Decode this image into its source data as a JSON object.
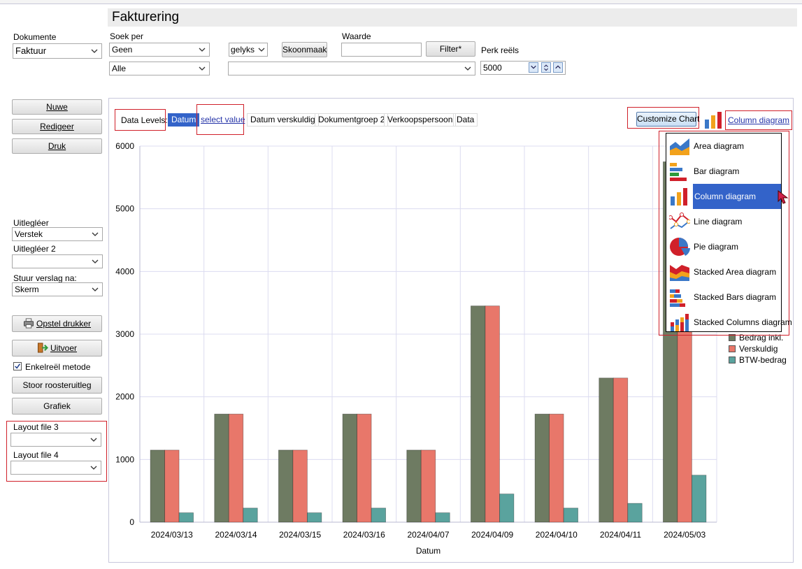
{
  "window": {
    "title": "Fakturering"
  },
  "filters": {
    "dokumente_label": "Dokumente",
    "dokumente_value": "Faktuur",
    "soek_per_label": "Soek per",
    "soek_per_value": "Geen",
    "soek_per_value2": "Alle",
    "operator_value": "gelyks",
    "skoonmaak_label": "Skoonmaak",
    "waarde_label": "Waarde",
    "waarde_value": "",
    "filter_label": "Filter*",
    "second_value": "",
    "perk_label": "Perk reëls",
    "perk_value": "5000"
  },
  "side": {
    "nuwe": "Nuwe",
    "redigeer": "Redigeer",
    "druk": "Druk",
    "uitleg_label": "Uitlegléer",
    "uitleg_value": "Verstek",
    "uitleg2_label": "Uitlegléer 2",
    "uitleg2_value": "",
    "stuur_label": "Stuur verslag na:",
    "stuur_value": "Skerm",
    "opstel": "Opstel drukker",
    "uitvoer": "Uitvoer",
    "enkel": "Enkelreël metode",
    "stoor": "Stoor roosteruitleg",
    "grafiek": "Grafiek",
    "layout3_label": "Layout file 3",
    "layout3_value": "",
    "layout4_label": "Layout file 4",
    "layout4_value": ""
  },
  "levels": {
    "label": "Data Levels:",
    "items": [
      "Datum",
      "select value",
      "Datum verskuldig",
      "Dokumentgroep 2",
      "Verkoopspersoon",
      "Data"
    ]
  },
  "chart_controls": {
    "customize": "Customize Chart",
    "current": "Column diagram"
  },
  "menu": {
    "items": [
      "Area diagram",
      "Bar diagram",
      "Column diagram",
      "Line diagram",
      "Pie diagram",
      "Stacked Area diagram",
      "Stacked Bars diagram",
      "Stacked Columns diagram"
    ],
    "selected": "Column diagram"
  },
  "colors": {
    "bedrag": "#6e7b62",
    "verskuldig": "#e8776a",
    "btw": "#5aa39e",
    "selection": "#3363c9",
    "highlight": "#d0202a"
  },
  "chart_data": {
    "type": "bar",
    "xlabel": "Datum",
    "ylabel": "",
    "ylim": [
      0,
      6000
    ],
    "yticks": [
      0,
      1000,
      2000,
      3000,
      4000,
      5000,
      6000
    ],
    "categories": [
      "2024/03/13",
      "2024/03/14",
      "2024/03/15",
      "2024/03/16",
      "2024/04/07",
      "2024/04/09",
      "2024/04/10",
      "2024/04/11",
      "2024/05/03"
    ],
    "series": [
      {
        "name": "Bedrag inkl.",
        "values": [
          1150,
          1725,
          1150,
          1725,
          1150,
          3450,
          1725,
          2300,
          5750
        ]
      },
      {
        "name": "Verskuldig",
        "values": [
          1150,
          1725,
          1150,
          1725,
          1150,
          3450,
          1725,
          2300,
          5750
        ]
      },
      {
        "name": "BTW-bedrag",
        "values": [
          150,
          225,
          150,
          225,
          150,
          450,
          225,
          300,
          750
        ]
      }
    ],
    "legend": "right",
    "grid": true
  }
}
